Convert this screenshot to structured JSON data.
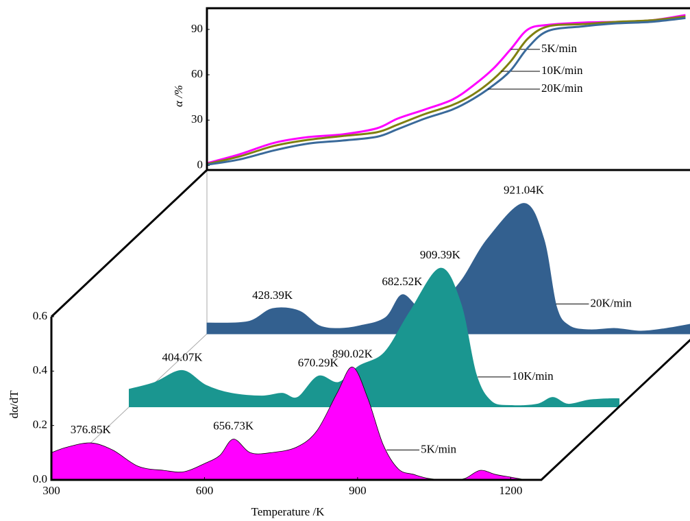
{
  "chart_data": [
    {
      "type": "line",
      "y_label": "α /%",
      "xlim": [
        300,
        1260
      ],
      "ylim": [
        -3,
        104
      ],
      "yticks": [
        0,
        30,
        60,
        90
      ],
      "x": [
        300,
        365,
        434,
        502,
        570,
        638,
        679,
        733,
        788,
        829,
        869,
        904,
        938,
        978,
        1047,
        1115,
        1183,
        1251
      ],
      "series": [
        {
          "name": "5K/min",
          "color": "#ff00ff",
          "values": [
            1.5,
            7.4,
            15,
            18.8,
            20.6,
            24.6,
            31,
            37,
            43.6,
            52.8,
            64,
            77,
            90,
            93,
            94.5,
            95,
            96,
            99.5
          ]
        },
        {
          "name": "10K/min",
          "color": "#808010",
          "values": [
            1,
            6,
            13,
            17,
            19.5,
            22,
            27,
            34,
            40,
            47,
            57,
            69,
            84,
            92,
            93.5,
            95,
            96,
            98.5
          ]
        },
        {
          "name": "20K/min",
          "color": "#3a6a9a",
          "values": [
            0.5,
            4,
            10,
            14.5,
            16.5,
            19,
            24,
            31,
            37,
            44,
            53,
            63,
            78,
            89,
            92,
            94,
            95,
            97.5
          ]
        }
      ]
    },
    {
      "type": "area3d",
      "x_label": "Temperature /K",
      "y_label": "dα/dT",
      "xlim": [
        300,
        1260
      ],
      "ylim": [
        0,
        0.6
      ],
      "xticks": [
        300,
        600,
        900,
        1200
      ],
      "yticks": [
        {
          "value": 0,
          "label": "0.0"
        },
        0.2,
        0.4,
        0.6
      ],
      "series": [
        {
          "name": "5K/min",
          "color": "#ff00ff",
          "x": [
            300,
            330,
            376.85,
            420,
            470,
            520,
            560,
            600,
            630,
            656.73,
            690,
            730,
            780,
            820,
            860,
            890.02,
            920,
            950,
            980,
            1010,
            1040,
            1080,
            1110,
            1140,
            1170,
            1200,
            1230
          ],
          "values": [
            0.1,
            0.12,
            0.136,
            0.11,
            0.05,
            0.035,
            0.03,
            0.06,
            0.09,
            0.15,
            0.1,
            0.1,
            0.12,
            0.18,
            0.32,
            0.415,
            0.3,
            0.13,
            0.04,
            0.02,
            0.005,
            0.0,
            0.005,
            0.035,
            0.02,
            0.01,
            0.0
          ],
          "peaks": [
            {
              "x": 376.85,
              "label": "376.85K"
            },
            {
              "x": 656.73,
              "label": "656.73K"
            },
            {
              "x": 890.02,
              "label": "890.02K"
            }
          ]
        },
        {
          "name": "10K/min",
          "color": "#1a9690",
          "x": [
            300,
            350,
            404.07,
            450,
            500,
            560,
            600,
            630,
            670.29,
            710,
            750,
            800,
            850,
            909.39,
            950,
            980,
            1010,
            1050,
            1100,
            1130,
            1160,
            1200,
            1240,
            1260
          ],
          "values": [
            0.065,
            0.09,
            0.134,
            0.08,
            0.05,
            0.04,
            0.05,
            0.035,
            0.113,
            0.09,
            0.15,
            0.2,
            0.35,
            0.51,
            0.38,
            0.12,
            0.02,
            0.005,
            0.01,
            0.035,
            0.01,
            0.025,
            0.03,
            0.03
          ],
          "peaks": [
            {
              "x": 404.07,
              "label": "404.07K"
            },
            {
              "x": 670.29,
              "label": "670.29K"
            },
            {
              "x": 909.39,
              "label": "909.39K"
            }
          ]
        },
        {
          "name": "20K/min",
          "color": "#33608f",
          "x": [
            300,
            380,
            428.39,
            480,
            520,
            560,
            600,
            650,
            682.52,
            720,
            760,
            800,
            850,
            921.04,
            960,
            985,
            1010,
            1050,
            1100,
            1150,
            1200,
            1260
          ],
          "values": [
            0.04,
            0.045,
            0.093,
            0.085,
            0.03,
            0.02,
            0.03,
            0.06,
            0.144,
            0.09,
            0.12,
            0.2,
            0.35,
            0.48,
            0.35,
            0.1,
            0.03,
            0.015,
            0.02,
            0.01,
            0.02,
            0.04
          ],
          "peaks": [
            {
              "x": 428.39,
              "label": "428.39K"
            },
            {
              "x": 682.52,
              "label": "682.52K"
            },
            {
              "x": 921.04,
              "label": "921.04K"
            }
          ]
        }
      ]
    }
  ]
}
